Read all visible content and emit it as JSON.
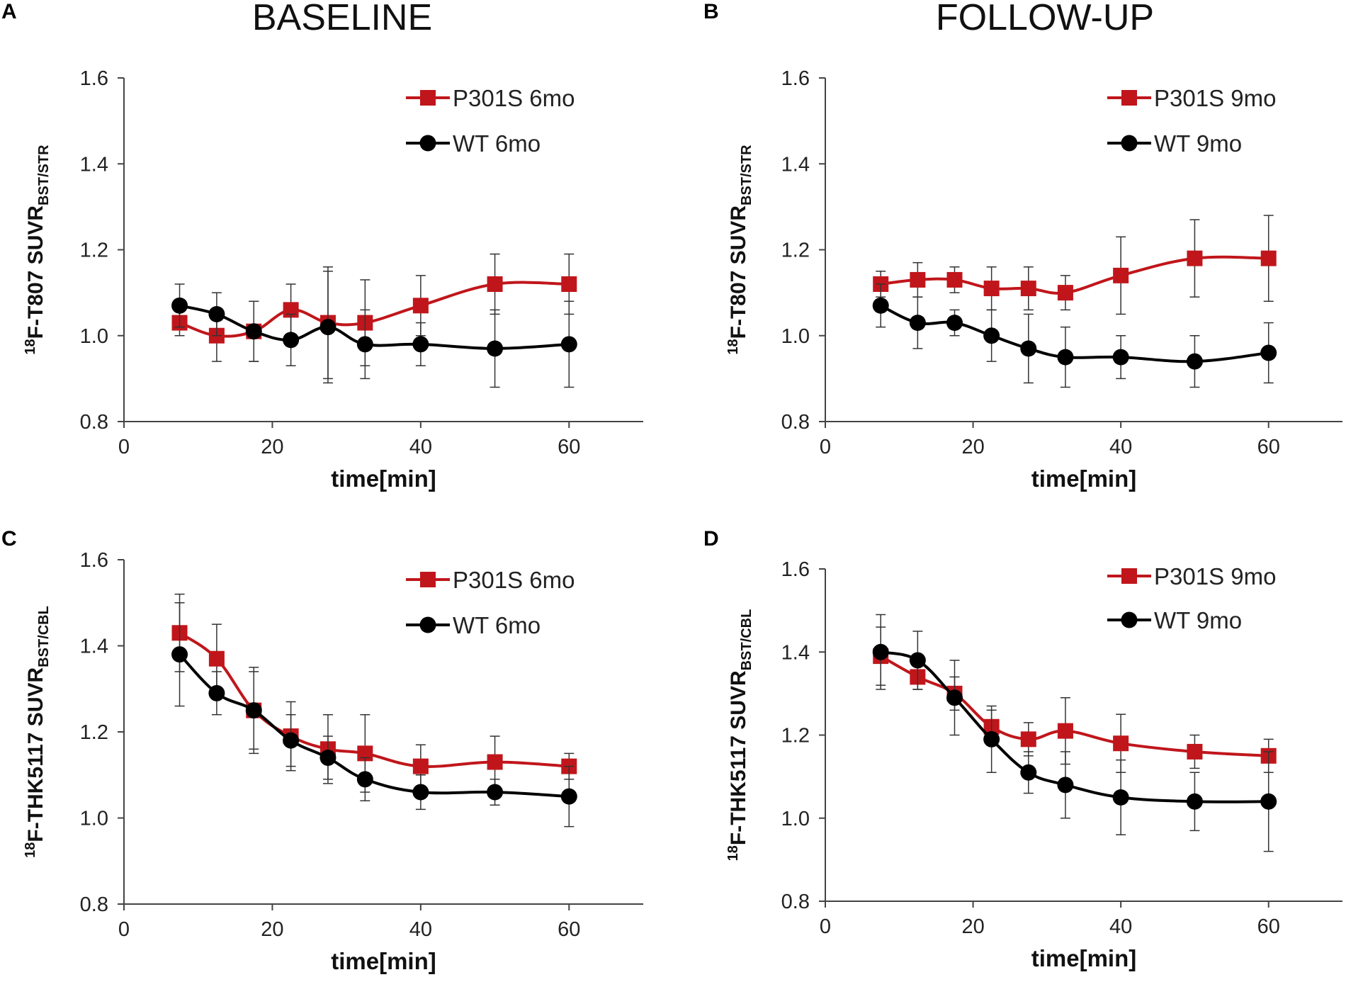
{
  "column_titles": {
    "left": "BASELINE",
    "right": "FOLLOW-UP"
  },
  "colors": {
    "red": "#C0161B",
    "black": "#000000",
    "axis": "#444444"
  },
  "chart_data": [
    {
      "panel": "A",
      "type": "line",
      "xlabel": "time[min]",
      "ylabel": {
        "sup": "18",
        "main": "F-T807 SUVR",
        "sub": "BST/STR"
      },
      "xlim": [
        0,
        70
      ],
      "ylim": [
        0.8,
        1.6
      ],
      "xticks": [
        0,
        20,
        40,
        60
      ],
      "yticks": [
        "0.8",
        "1.0",
        "1.2",
        "1.4",
        "1.6"
      ],
      "legend_position": "top-right",
      "series": [
        {
          "name": "P301S 6mo",
          "color": "#C0161B",
          "marker": "square",
          "x": [
            7.5,
            12.5,
            17.5,
            22.5,
            27.5,
            32.5,
            40,
            50,
            60
          ],
          "y": [
            1.03,
            1.0,
            1.01,
            1.06,
            1.03,
            1.03,
            1.07,
            1.12,
            1.12
          ],
          "err": [
            0.03,
            0.06,
            0.07,
            0.06,
            0.13,
            0.1,
            0.07,
            0.07,
            0.07
          ]
        },
        {
          "name": "WT 6mo",
          "color": "#000000",
          "marker": "circle",
          "x": [
            7.5,
            12.5,
            17.5,
            22.5,
            27.5,
            32.5,
            40,
            50,
            60
          ],
          "y": [
            1.07,
            1.05,
            1.01,
            0.99,
            1.02,
            0.98,
            0.98,
            0.97,
            0.98
          ],
          "err": [
            0.05,
            0.05,
            0.07,
            0.06,
            0.13,
            0.08,
            0.05,
            0.09,
            0.1
          ]
        }
      ]
    },
    {
      "panel": "B",
      "type": "line",
      "xlabel": "time[min]",
      "ylabel": {
        "sup": "18",
        "main": "F-T807 SUVR",
        "sub": "BST/STR"
      },
      "xlim": [
        0,
        70
      ],
      "ylim": [
        0.8,
        1.6
      ],
      "xticks": [
        0,
        20,
        40,
        60
      ],
      "yticks": [
        "0.8",
        "1.0",
        "1.2",
        "1.4",
        "1.6"
      ],
      "legend_position": "top-right",
      "series": [
        {
          "name": "P301S 9mo",
          "color": "#C0161B",
          "marker": "square",
          "x": [
            7.5,
            12.5,
            17.5,
            22.5,
            27.5,
            32.5,
            40,
            50,
            60
          ],
          "y": [
            1.12,
            1.13,
            1.13,
            1.11,
            1.11,
            1.1,
            1.14,
            1.18,
            1.18
          ],
          "err": [
            0.03,
            0.04,
            0.03,
            0.05,
            0.05,
            0.04,
            0.09,
            0.09,
            0.1
          ]
        },
        {
          "name": "WT 9mo",
          "color": "#000000",
          "marker": "circle",
          "x": [
            7.5,
            12.5,
            17.5,
            22.5,
            27.5,
            32.5,
            40,
            50,
            60
          ],
          "y": [
            1.07,
            1.03,
            1.03,
            1.0,
            0.97,
            0.95,
            0.95,
            0.94,
            0.96
          ],
          "err": [
            0.05,
            0.06,
            0.03,
            0.06,
            0.08,
            0.07,
            0.05,
            0.06,
            0.07
          ]
        }
      ]
    },
    {
      "panel": "C",
      "type": "line",
      "xlabel": "time[min]",
      "ylabel": {
        "sup": "18",
        "main": "F-THK5117 SUVR",
        "sub": "BST/CBL"
      },
      "xlim": [
        0,
        70
      ],
      "ylim": [
        0.8,
        1.6
      ],
      "xticks": [
        0,
        20,
        40,
        60
      ],
      "yticks": [
        "0.8",
        "1.0",
        "1.2",
        "1.4",
        "1.6"
      ],
      "legend_position": "top-right",
      "series": [
        {
          "name": "P301S 6mo",
          "color": "#C0161B",
          "marker": "square",
          "x": [
            7.5,
            12.5,
            17.5,
            22.5,
            27.5,
            32.5,
            40,
            50,
            60
          ],
          "y": [
            1.43,
            1.37,
            1.25,
            1.19,
            1.16,
            1.15,
            1.12,
            1.13,
            1.12
          ],
          "err": [
            0.09,
            0.08,
            0.1,
            0.08,
            0.08,
            0.09,
            0.05,
            0.06,
            0.03
          ]
        },
        {
          "name": "WT 6mo",
          "color": "#000000",
          "marker": "circle",
          "x": [
            7.5,
            12.5,
            17.5,
            22.5,
            27.5,
            32.5,
            40,
            50,
            60
          ],
          "y": [
            1.38,
            1.29,
            1.25,
            1.18,
            1.14,
            1.09,
            1.06,
            1.06,
            1.05
          ],
          "err": [
            0.12,
            0.05,
            0.09,
            0.06,
            0.05,
            0.05,
            0.04,
            0.03,
            0.07
          ]
        }
      ]
    },
    {
      "panel": "D",
      "type": "line",
      "xlabel": "time[min]",
      "ylabel": {
        "sup": "18",
        "main": "F-THK5117 SUVR",
        "sub": "BST/CBL"
      },
      "xlim": [
        0,
        70
      ],
      "ylim": [
        0.8,
        1.6
      ],
      "xticks": [
        0,
        20,
        40,
        60
      ],
      "yticks": [
        "0.8",
        "1.0",
        "1.2",
        "1.4",
        "1.6"
      ],
      "legend_position": "top-right",
      "series": [
        {
          "name": "P301S 9mo",
          "color": "#C0161B",
          "marker": "square",
          "x": [
            7.5,
            12.5,
            17.5,
            22.5,
            27.5,
            32.5,
            40,
            50,
            60
          ],
          "y": [
            1.39,
            1.34,
            1.3,
            1.22,
            1.19,
            1.21,
            1.18,
            1.16,
            1.15
          ],
          "err": [
            0.07,
            0.03,
            0.04,
            0.04,
            0.04,
            0.08,
            0.07,
            0.04,
            0.04
          ]
        },
        {
          "name": "WT 9mo",
          "color": "#000000",
          "marker": "circle",
          "x": [
            7.5,
            12.5,
            17.5,
            22.5,
            27.5,
            32.5,
            40,
            50,
            60
          ],
          "y": [
            1.4,
            1.38,
            1.29,
            1.19,
            1.11,
            1.08,
            1.05,
            1.04,
            1.04
          ],
          "err": [
            0.09,
            0.07,
            0.09,
            0.08,
            0.05,
            0.08,
            0.09,
            0.07,
            0.12
          ]
        }
      ]
    }
  ]
}
